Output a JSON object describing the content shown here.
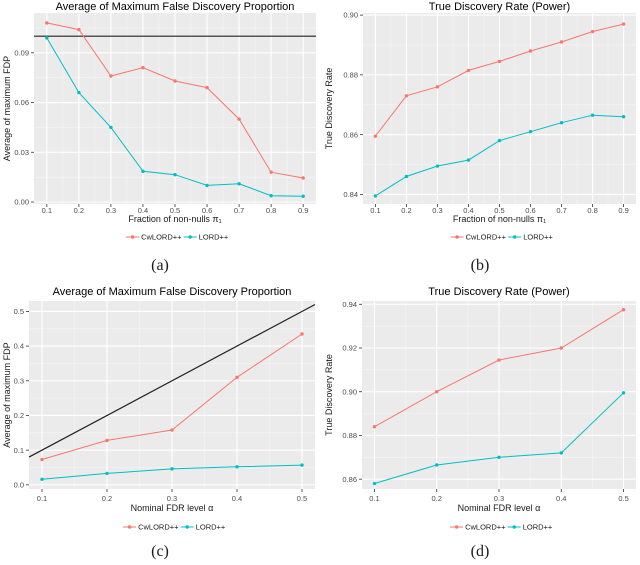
{
  "figure": {
    "kind": "2x2 ggplot-style line chart grid",
    "background": "#ffffff"
  },
  "colors": {
    "series_red": "#F8766D",
    "series_teal": "#00BFC4",
    "panel_bg": "#EBEBEB",
    "grid_major": "#FFFFFF",
    "grid_minor": "#F5F5F5",
    "ref_line": "#222222",
    "tick_text": "#4D4D4D",
    "axis_text": "#1a1a1a"
  },
  "legend": {
    "position": "bottom",
    "items": [
      {
        "label": "CwLORD++",
        "color": "#F8766D"
      },
      {
        "label": "LORD++",
        "color": "#00BFC4"
      }
    ]
  },
  "chart_data": [
    {
      "id": "a",
      "caption": "(a)",
      "type": "line",
      "title": "Average of Maximum False Discovery Proportion",
      "xlabel": "Fraction of non-nulls π₁",
      "ylabel": "Average of maximum FDP",
      "x": [
        0.1,
        0.2,
        0.3,
        0.4,
        0.5,
        0.6,
        0.7,
        0.8,
        0.9
      ],
      "series": [
        {
          "name": "CwLORD++",
          "color": "#F8766D",
          "values": [
            0.108,
            0.104,
            0.076,
            0.081,
            0.073,
            0.069,
            0.05,
            0.018,
            0.0145
          ]
        },
        {
          "name": "LORD++",
          "color": "#00BFC4",
          "values": [
            0.099,
            0.066,
            0.045,
            0.0185,
            0.0165,
            0.01,
            0.011,
            0.0038,
            0.0035
          ]
        }
      ],
      "ref_line": {
        "type": "hline",
        "y": 0.1
      },
      "xlim": [
        0.06,
        0.94
      ],
      "ylim": [
        -0.0012,
        0.114
      ],
      "xticks": {
        "values": [
          0.1,
          0.2,
          0.3,
          0.4,
          0.5,
          0.6,
          0.7,
          0.8,
          0.9
        ],
        "labels": [
          "0.1",
          "0.2",
          "0.3",
          "0.4",
          "0.5",
          "0.6",
          "0.7",
          "0.8",
          "0.9"
        ]
      },
      "yticks": {
        "values": [
          0.0,
          0.03,
          0.06,
          0.09
        ],
        "labels": [
          "0.00",
          "0.03",
          "0.06",
          "0.09"
        ]
      },
      "grid": true,
      "legend_position": "bottom"
    },
    {
      "id": "b",
      "caption": "(b)",
      "type": "line",
      "title": "True Discovery Rate (Power)",
      "xlabel": "Fraction of non-nulls π₁",
      "ylabel": "True Discovery Rate",
      "x": [
        0.1,
        0.2,
        0.3,
        0.4,
        0.5,
        0.6,
        0.7,
        0.8,
        0.9
      ],
      "series": [
        {
          "name": "CwLORD++",
          "color": "#F8766D",
          "values": [
            0.8595,
            0.873,
            0.876,
            0.8815,
            0.8845,
            0.888,
            0.891,
            0.8945,
            0.897
          ]
        },
        {
          "name": "LORD++",
          "color": "#00BFC4",
          "values": [
            0.8395,
            0.846,
            0.8495,
            0.8515,
            0.858,
            0.861,
            0.864,
            0.8665,
            0.866
          ]
        }
      ],
      "ref_line": null,
      "xlim": [
        0.06,
        0.94
      ],
      "ylim": [
        0.8368,
        0.9007
      ],
      "xticks": {
        "values": [
          0.1,
          0.2,
          0.3,
          0.4,
          0.5,
          0.6,
          0.7,
          0.8,
          0.9
        ],
        "labels": [
          "0.1",
          "0.2",
          "0.3",
          "0.4",
          "0.5",
          "0.6",
          "0.7",
          "0.8",
          "0.9"
        ]
      },
      "yticks": {
        "values": [
          0.84,
          0.86,
          0.88,
          0.9
        ],
        "labels": [
          "0.84",
          "0.86",
          "0.88",
          "0.90"
        ]
      },
      "grid": true,
      "legend_position": "bottom"
    },
    {
      "id": "c",
      "caption": "(c)",
      "type": "line",
      "title": "Average of Maximum False Discovery Proportion",
      "xlabel": "Nominal FDR level α",
      "ylabel": "Average of maximum FDP",
      "x": [
        0.1,
        0.2,
        0.3,
        0.4,
        0.5
      ],
      "series": [
        {
          "name": "CwLORD++",
          "color": "#F8766D",
          "values": [
            0.073,
            0.128,
            0.158,
            0.31,
            0.435
          ]
        },
        {
          "name": "LORD++",
          "color": "#00BFC4",
          "values": [
            0.016,
            0.033,
            0.046,
            0.052,
            0.057
          ]
        }
      ],
      "ref_line": {
        "type": "abline",
        "slope": 1,
        "intercept": 0
      },
      "xlim": [
        0.08,
        0.52
      ],
      "ylim": [
        -0.012,
        0.53
      ],
      "xticks": {
        "values": [
          0.1,
          0.2,
          0.3,
          0.4,
          0.5
        ],
        "labels": [
          "0.1",
          "0.2",
          "0.3",
          "0.4",
          "0.5"
        ]
      },
      "yticks": {
        "values": [
          0.0,
          0.1,
          0.2,
          0.3,
          0.4,
          0.5
        ],
        "labels": [
          "0.0",
          "0.1",
          "0.2",
          "0.3",
          "0.4",
          "0.5"
        ]
      },
      "grid": true,
      "legend_position": "bottom"
    },
    {
      "id": "d",
      "caption": "(d)",
      "type": "line",
      "title": "True Discovery Rate (Power)",
      "xlabel": "Nominal FDR level α",
      "ylabel": "True Discovery Rate",
      "x": [
        0.1,
        0.2,
        0.3,
        0.4,
        0.5
      ],
      "series": [
        {
          "name": "CwLORD++",
          "color": "#F8766D",
          "values": [
            0.884,
            0.9,
            0.9145,
            0.92,
            0.9375
          ]
        },
        {
          "name": "LORD++",
          "color": "#00BFC4",
          "values": [
            0.858,
            0.8665,
            0.87,
            0.872,
            0.8995
          ]
        }
      ],
      "ref_line": null,
      "xlim": [
        0.08,
        0.52
      ],
      "ylim": [
        0.8555,
        0.9415
      ],
      "xticks": {
        "values": [
          0.1,
          0.2,
          0.3,
          0.4,
          0.5
        ],
        "labels": [
          "0.1",
          "0.2",
          "0.3",
          "0.4",
          "0.5"
        ]
      },
      "yticks": {
        "values": [
          0.86,
          0.88,
          0.9,
          0.92,
          0.94
        ],
        "labels": [
          "0.86",
          "0.88",
          "0.90",
          "0.92",
          "0.94"
        ]
      },
      "grid": true,
      "legend_position": "bottom"
    }
  ]
}
